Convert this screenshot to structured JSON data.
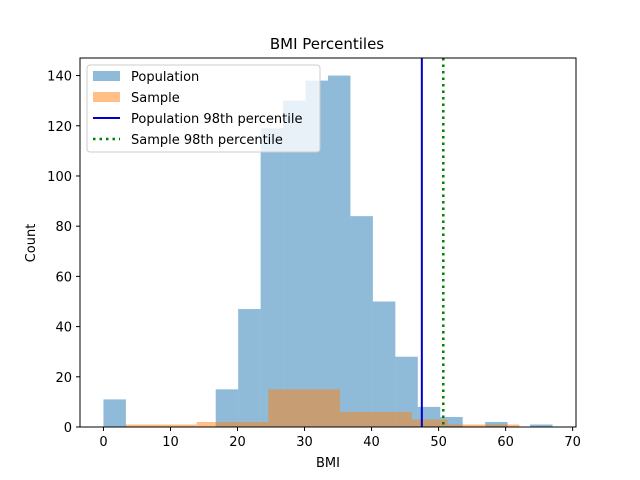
{
  "chart_data": {
    "type": "bar",
    "title": "BMI Percentiles",
    "xlabel": "BMI",
    "ylabel": "Count",
    "xlim": [
      -3.5,
      70.5
    ],
    "ylim": [
      0,
      147
    ],
    "xticks": [
      0,
      10,
      20,
      30,
      40,
      50,
      60,
      70
    ],
    "yticks": [
      0,
      20,
      40,
      60,
      80,
      100,
      120,
      140
    ],
    "grid": false,
    "legend_position": "top-left",
    "series": [
      {
        "name": "Population",
        "color": "#1f77b4",
        "alpha": 0.5,
        "bins": [
          [
            0,
            3.35,
            11
          ],
          [
            3.35,
            6.7,
            0
          ],
          [
            6.7,
            10.05,
            0
          ],
          [
            10.05,
            13.4,
            0
          ],
          [
            13.4,
            16.75,
            0
          ],
          [
            16.75,
            20.1,
            15
          ],
          [
            20.1,
            23.45,
            47
          ],
          [
            23.45,
            26.8,
            119
          ],
          [
            26.8,
            30.15,
            130
          ],
          [
            30.15,
            33.5,
            138
          ],
          [
            33.5,
            36.85,
            140
          ],
          [
            36.85,
            40.2,
            84
          ],
          [
            40.2,
            43.55,
            50
          ],
          [
            43.55,
            46.9,
            28
          ],
          [
            46.9,
            50.25,
            8
          ],
          [
            50.25,
            53.6,
            4
          ],
          [
            53.6,
            56.95,
            0
          ],
          [
            56.95,
            60.3,
            2
          ],
          [
            60.3,
            63.65,
            0
          ],
          [
            63.65,
            67.0,
            1
          ]
        ]
      },
      {
        "name": "Sample",
        "color": "#ff7f0e",
        "alpha": 0.5,
        "bins": [
          [
            3.2,
            8.55,
            1
          ],
          [
            8.55,
            13.9,
            1
          ],
          [
            13.9,
            19.25,
            2
          ],
          [
            19.25,
            24.6,
            2
          ],
          [
            24.6,
            29.95,
            15
          ],
          [
            29.95,
            35.3,
            15
          ],
          [
            35.3,
            40.65,
            6
          ],
          [
            40.65,
            46.0,
            6
          ],
          [
            46.0,
            51.35,
            3
          ],
          [
            51.35,
            56.7,
            1
          ],
          [
            56.7,
            62.05,
            1
          ]
        ]
      }
    ],
    "vlines": [
      {
        "name": "Population 98th percentile",
        "x": 47.5,
        "color": "#0000cc",
        "style": "solid"
      },
      {
        "name": "Sample 98th percentile",
        "x": 50.7,
        "color": "#007f00",
        "style": "dotted"
      }
    ]
  },
  "text": {
    "title": "BMI Percentiles",
    "xlabel": "BMI",
    "ylabel": "Count",
    "legend": [
      "Population",
      "Sample",
      "Population 98th percentile",
      "Sample 98th percentile"
    ]
  }
}
